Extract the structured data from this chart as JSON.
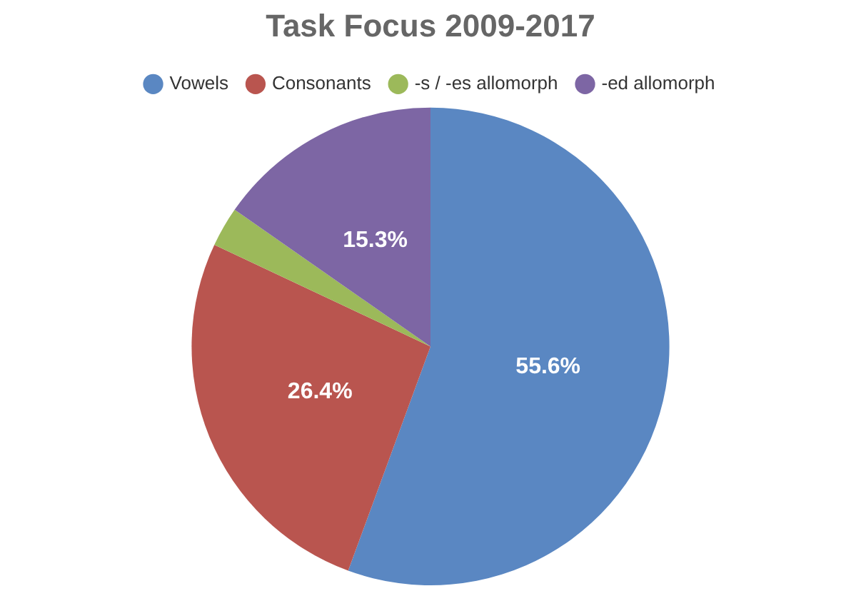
{
  "chart_data": {
    "type": "pie",
    "title": "Task Focus 2009-2017",
    "categories": [
      "Vowels",
      "Consonants",
      "-s / -es allomorph",
      "-ed allomorph"
    ],
    "values": [
      55.6,
      26.4,
      2.7,
      15.3
    ],
    "colors": [
      "#5a87c2",
      "#b9554f",
      "#9cb95a",
      "#7d66a4"
    ],
    "value_labels": [
      "55.6%",
      "26.4%",
      null,
      "15.3%"
    ],
    "legend": "top"
  }
}
